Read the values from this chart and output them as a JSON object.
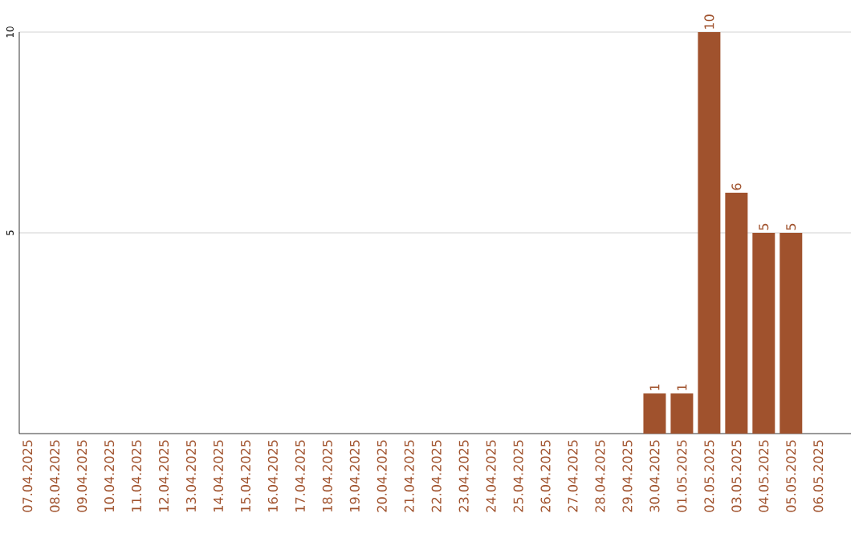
{
  "chart_data": {
    "type": "bar",
    "categories": [
      "07.04.2025",
      "08.04.2025",
      "09.04.2025",
      "10.04.2025",
      "11.04.2025",
      "12.04.2025",
      "13.04.2025",
      "14.04.2025",
      "15.04.2025",
      "16.04.2025",
      "17.04.2025",
      "18.04.2025",
      "19.04.2025",
      "20.04.2025",
      "21.04.2025",
      "22.04.2025",
      "23.04.2025",
      "24.04.2025",
      "25.04.2025",
      "26.04.2025",
      "27.04.2025",
      "28.04.2025",
      "29.04.2025",
      "30.04.2025",
      "01.05.2025",
      "02.05.2025",
      "03.05.2025",
      "04.05.2025",
      "05.05.2025",
      "06.05.2025"
    ],
    "values": [
      0,
      0,
      0,
      0,
      0,
      0,
      0,
      0,
      0,
      0,
      0,
      0,
      0,
      0,
      0,
      0,
      0,
      0,
      0,
      0,
      0,
      0,
      0,
      1,
      1,
      10,
      6,
      5,
      5,
      0
    ],
    "value_labels": [
      null,
      null,
      null,
      null,
      null,
      null,
      null,
      null,
      null,
      null,
      null,
      null,
      null,
      null,
      null,
      null,
      null,
      null,
      null,
      null,
      null,
      null,
      null,
      "1",
      "1",
      "10",
      "6",
      "5",
      "5",
      null
    ],
    "color": "#a0522d",
    "ylim": [
      0,
      10
    ],
    "yticks": [
      5,
      10
    ],
    "grid": "y"
  }
}
